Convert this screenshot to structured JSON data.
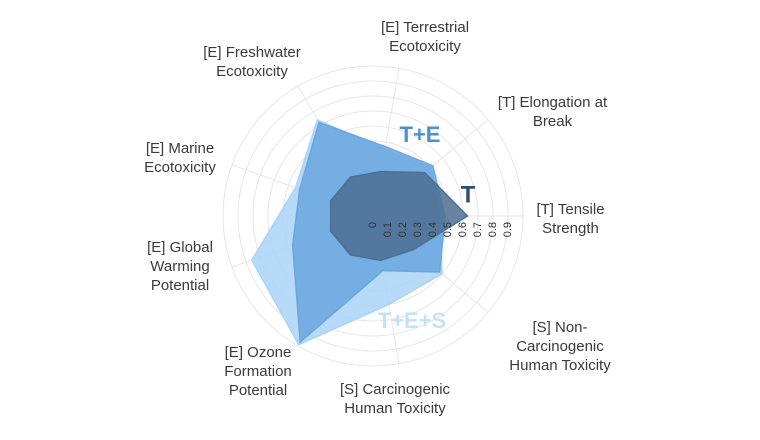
{
  "chart_data": {
    "type": "radar",
    "categories": [
      "[T] Tensile Strength",
      "[T] Elongation at Break",
      "[E] Terrestrial Ecotoxicity",
      "[E] Freshwater Ecotoxicity",
      "[E] Marine Ecotoxicity",
      "[E] Global Warming Potential",
      "[E] Ozone Formation Potential",
      "[S] Carcinogenic Human Toxicity",
      "[S] Non-Carcinogenic Human Toxicity"
    ],
    "series": [
      {
        "name": "T+E+S",
        "color": "#a9d3f7",
        "values": [
          0.45,
          0.5,
          0.45,
          0.74,
          0.55,
          0.86,
          0.99,
          0.6,
          0.6
        ]
      },
      {
        "name": "T+E",
        "color": "#6aa6de",
        "values": [
          0.48,
          0.52,
          0.47,
          0.72,
          0.52,
          0.57,
          0.97,
          0.37,
          0.58
        ]
      },
      {
        "name": "T",
        "color": "#4d6f93",
        "values": [
          0.63,
          0.45,
          0.3,
          0.3,
          0.3,
          0.3,
          0.3,
          0.3,
          0.35
        ]
      }
    ],
    "rlim": [
      0,
      1
    ],
    "rticks": [
      0,
      0.1,
      0.2,
      0.3,
      0.4,
      0.5,
      0.6,
      0.7,
      0.8,
      0.9
    ],
    "grid": true
  }
}
